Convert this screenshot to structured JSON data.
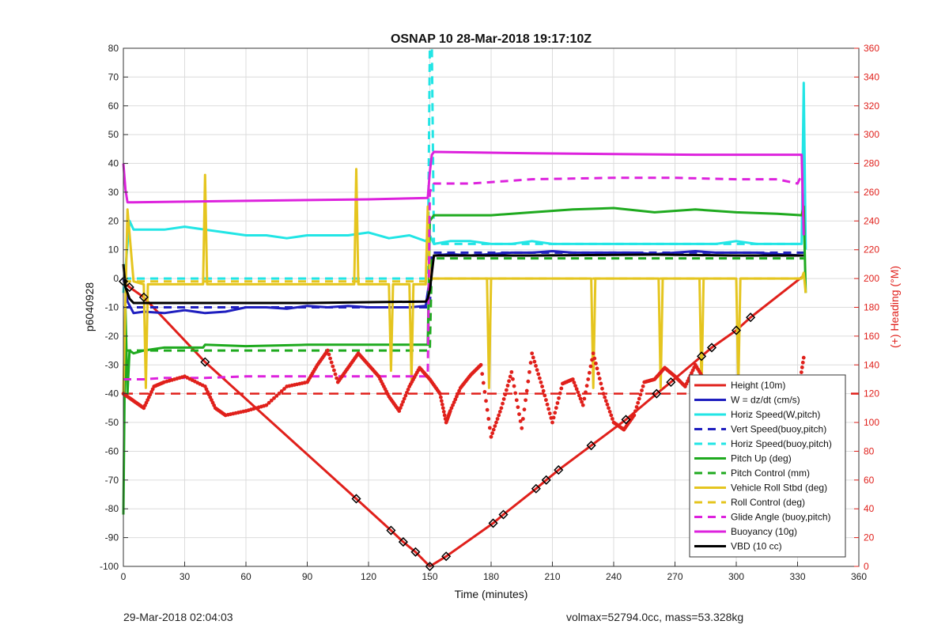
{
  "chart_data": {
    "type": "line",
    "title": "OSNAP 10 28-Mar-2018 19:17:10Z",
    "xlabel": "Time (minutes)",
    "ylabel": "p6040928",
    "ylabel_right": "(+) Heading (°M)",
    "xlim": [
      0,
      360
    ],
    "ylim": [
      -100,
      80
    ],
    "ylim_right": [
      0,
      360
    ],
    "x_ticks": [
      "0",
      "30",
      "60",
      "90",
      "120",
      "150",
      "180",
      "210",
      "240",
      "270",
      "300",
      "330",
      "360"
    ],
    "y_ticks": [
      "-100",
      "-90",
      "-80",
      "-70",
      "-60",
      "-50",
      "-40",
      "-30",
      "-20",
      "-10",
      "0",
      "10",
      "20",
      "30",
      "40",
      "50",
      "60",
      "70",
      "80"
    ],
    "y_ticks_right": [
      "0",
      "20",
      "40",
      "60",
      "80",
      "100",
      "120",
      "140",
      "160",
      "180",
      "200",
      "220",
      "240",
      "260",
      "280",
      "300",
      "320",
      "340",
      "360"
    ],
    "grid": true,
    "legend_position": "bottom-right",
    "series": [
      {
        "name": "Height (10m)",
        "color": "#e0201b",
        "style": "solid",
        "x": [
          0,
          3,
          10,
          40,
          114,
          131,
          137,
          143,
          150,
          158,
          181,
          186,
          202,
          207,
          213,
          229,
          246,
          261,
          268,
          283,
          288,
          300,
          307,
          333
        ],
        "y": [
          -1,
          -3,
          -6.5,
          -29,
          -76.5,
          -87.5,
          -91.5,
          -95,
          -100,
          -96.5,
          -85,
          -82,
          -73,
          -70,
          -66.5,
          -58,
          -49,
          -40,
          -36,
          -27,
          -24,
          -18,
          -13.5,
          1
        ]
      },
      {
        "name": "W = dz/dt (cm/s)",
        "color": "#1f1fbf",
        "style": "solid",
        "x": [
          0,
          2,
          5,
          10,
          20,
          30,
          40,
          50,
          60,
          70,
          80,
          90,
          100,
          110,
          120,
          130,
          140,
          148,
          150,
          152,
          160,
          170,
          180,
          190,
          200,
          210,
          220,
          230,
          240,
          250,
          260,
          270,
          280,
          290,
          300,
          310,
          320,
          332
        ],
        "y": [
          0,
          -8,
          -12,
          -11.5,
          -12,
          -11,
          -12,
          -11.5,
          -10,
          -10,
          -10.5,
          -9.5,
          -10,
          -9.5,
          -10,
          -10,
          -10,
          -9.5,
          0,
          8,
          8.5,
          8,
          8.5,
          9,
          9,
          9.5,
          9,
          9,
          9,
          9,
          8.5,
          9,
          9.5,
          9,
          9,
          9,
          8.5,
          8
        ]
      },
      {
        "name": "Horiz Speed(W,pitch)",
        "color": "#22e5e5",
        "style": "solid",
        "x": [
          0,
          3,
          5,
          10,
          20,
          30,
          40,
          50,
          60,
          70,
          80,
          90,
          100,
          110,
          120,
          130,
          140,
          148,
          150,
          152,
          160,
          170,
          180,
          190,
          200,
          210,
          220,
          230,
          240,
          250,
          260,
          270,
          280,
          290,
          300,
          310,
          320,
          332,
          333,
          334
        ],
        "y": [
          -5,
          20,
          17,
          17,
          17,
          18,
          17,
          16,
          15,
          15,
          14,
          15,
          15,
          15,
          16,
          14,
          15,
          13,
          15,
          12,
          13,
          13,
          12,
          12,
          13,
          12,
          12,
          12,
          12,
          12,
          12,
          12,
          12,
          12,
          13,
          12,
          12,
          12,
          68,
          10
        ]
      },
      {
        "name": "Vert Speed(buoy,pitch)",
        "color": "#1f1fbf",
        "style": "dashed",
        "x": [
          0,
          150,
          151,
          333
        ],
        "y": [
          -10,
          -10,
          9,
          9
        ]
      },
      {
        "name": "Horiz Speed(buoy,pitch)",
        "color": "#22e5e5",
        "style": "dashed",
        "x": [
          0,
          149,
          150,
          151,
          152,
          333
        ],
        "y": [
          0,
          0,
          80,
          80,
          12,
          12
        ]
      },
      {
        "name": "Pitch Up (deg)",
        "color": "#1faa1f",
        "style": "solid",
        "x": [
          0,
          1,
          2,
          3,
          5,
          10,
          20,
          30,
          39,
          40,
          60,
          90,
          120,
          140,
          149,
          150,
          152,
          160,
          180,
          200,
          220,
          240,
          260,
          280,
          300,
          320,
          332,
          333,
          334
        ],
        "y": [
          -82,
          -10,
          -40,
          -25,
          -26,
          -25,
          -24,
          -24,
          -24,
          -23,
          -23.5,
          -23,
          -23,
          -23,
          -23,
          20,
          22,
          22,
          22,
          23,
          24,
          24.5,
          23,
          24,
          23,
          22.5,
          22,
          25,
          -5
        ]
      },
      {
        "name": "Pitch Control (mm)",
        "color": "#1faa1f",
        "style": "dashed",
        "x": [
          0,
          150,
          151,
          333
        ],
        "y": [
          -25,
          -25,
          7,
          7
        ]
      },
      {
        "name": "Vehicle Roll Stbd (deg)",
        "color": "#e5c51f",
        "style": "solid",
        "x": [
          0,
          2,
          5,
          10,
          11,
          12,
          20,
          39,
          40,
          41,
          60,
          90,
          113,
          114,
          115,
          130,
          131,
          132,
          140,
          141,
          142,
          148,
          149,
          150,
          152,
          160,
          170,
          178,
          179,
          180,
          190,
          200,
          210,
          229,
          230,
          231,
          240,
          262,
          263,
          264,
          270,
          282,
          283,
          284,
          290,
          300,
          301,
          302,
          320,
          332,
          333,
          334
        ],
        "y": [
          -40,
          24,
          -1,
          -2,
          -38,
          -2,
          -2,
          -2,
          36,
          -2,
          -2,
          -2,
          -2,
          38,
          -2,
          -2,
          -32,
          -2,
          -2,
          -35,
          -2,
          -2,
          25,
          0,
          0,
          0,
          0,
          0,
          -38,
          0,
          0,
          0,
          0,
          0,
          -38,
          0,
          0,
          0,
          -38,
          0,
          0,
          0,
          -38,
          0,
          0,
          0,
          -38,
          0,
          0,
          0,
          2,
          -5
        ]
      },
      {
        "name": "Roll Control (deg)",
        "color": "#e5c51f",
        "style": "dashed",
        "x": [
          0,
          150,
          151,
          333
        ],
        "y": [
          -1,
          -1,
          0,
          0
        ]
      },
      {
        "name": "Glide Angle (buoy,pitch)",
        "color": "#dd22dd",
        "style": "dashed",
        "x": [
          0,
          10,
          20,
          40,
          60,
          90,
          120,
          149,
          150,
          152,
          170,
          200,
          240,
          270,
          300,
          320,
          330,
          332
        ],
        "y": [
          -35,
          -35,
          -34.5,
          -34.5,
          -34,
          -34,
          -34,
          -34,
          30,
          33,
          33,
          34.5,
          35,
          35,
          34.5,
          34.5,
          33,
          36
        ]
      },
      {
        "name": "Buoyancy (10g)",
        "color": "#dd22dd",
        "style": "solid",
        "x": [
          0,
          1,
          2,
          5,
          60,
          120,
          149,
          150,
          151,
          152,
          200,
          280,
          332,
          333
        ],
        "y": [
          40,
          31,
          26.5,
          26.5,
          27,
          27.5,
          28,
          37,
          43,
          44,
          43.5,
          43,
          43,
          15
        ]
      },
      {
        "name": "VBD (10 cc)",
        "color": "#000000",
        "style": "solid",
        "x": [
          0,
          1,
          3,
          5,
          10,
          40,
          90,
          148,
          149,
          150,
          151,
          152,
          200,
          260,
          300,
          333
        ],
        "y": [
          5,
          -3,
          -7,
          -8.5,
          -8.5,
          -8.5,
          -8.5,
          -8,
          -7,
          -4,
          2,
          8,
          8,
          8.3,
          8,
          8
        ]
      },
      {
        "name": "Heading (°M)",
        "axis": "right",
        "color": "#e0201b",
        "style": "markers",
        "x": [
          0,
          5,
          10,
          15,
          20,
          30,
          40,
          45,
          50,
          60,
          70,
          80,
          90,
          95,
          100,
          105,
          110,
          115,
          120,
          125,
          130,
          135,
          140,
          145,
          150,
          155,
          158,
          160,
          165,
          170,
          175,
          180,
          185,
          190,
          195,
          200,
          205,
          210,
          215,
          220,
          225,
          230,
          235,
          240,
          245,
          250,
          255,
          260,
          265,
          270,
          275,
          280,
          285,
          290,
          295,
          300,
          305,
          310,
          315,
          320,
          325,
          330,
          333
        ],
        "y": [
          120,
          115,
          110,
          125,
          128,
          132,
          125,
          110,
          105,
          108,
          112,
          125,
          128,
          140,
          150,
          128,
          138,
          148,
          140,
          132,
          118,
          108,
          125,
          138,
          130,
          120,
          100,
          108,
          124,
          133,
          140,
          90,
          110,
          135,
          96,
          148,
          125,
          100,
          127,
          130,
          112,
          148,
          120,
          100,
          95,
          105,
          128,
          130,
          138,
          132,
          125,
          140,
          128,
          130,
          122,
          118,
          122,
          118,
          118,
          115,
          112,
          118,
          145
        ]
      }
    ],
    "height_markers": {
      "x": [
        0,
        3,
        10,
        40,
        114,
        131,
        137,
        143,
        150,
        158,
        181,
        186,
        202,
        207,
        213,
        229,
        246,
        261,
        268,
        283,
        288,
        300,
        307
      ],
      "y": [
        -1,
        -3,
        -6.5,
        -29,
        -76.5,
        -87.5,
        -91.5,
        -95,
        -100,
        -96.5,
        -85,
        -82,
        -73,
        -70,
        -66.5,
        -58,
        -49,
        -40,
        -36,
        -27,
        -24,
        -18,
        -13.5
      ]
    },
    "reference_line_right": {
      "value": 120,
      "color": "#e0201b",
      "style": "dashed"
    }
  },
  "footer": {
    "left": "29-Mar-2018 02:04:03",
    "right": "volmax=52794.0cc, mass=53.328kg"
  }
}
